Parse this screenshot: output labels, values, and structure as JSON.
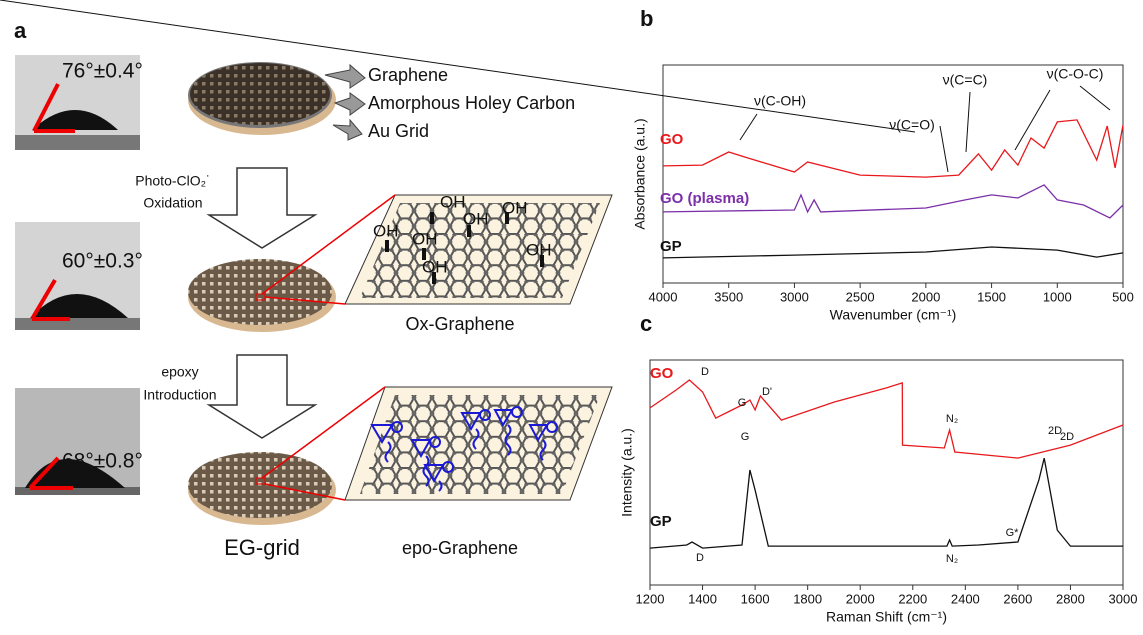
{
  "panel_a": {
    "label": "a",
    "angles": [
      "76°±0.4°",
      "60°±0.3°",
      "68°±0.8°"
    ],
    "layers": [
      "Graphene",
      "Amorphous Holey Carbon",
      "Au Grid"
    ],
    "step1": [
      "Photo-ClO₂˙",
      "Oxidation"
    ],
    "oh": [
      "OH",
      "OH",
      "OH",
      "OH",
      "OH",
      "OH",
      "OH"
    ],
    "ox_label": "Ox-Graphene",
    "step2": [
      "epoxy",
      "Introduction"
    ],
    "grid_label": "EG-grid",
    "epo_label": "epo-Graphene"
  },
  "chart_data": [
    {
      "type": "line",
      "panel_label": "b",
      "xlabel": "Wavenumber (cm⁻¹)",
      "ylabel": "Absorbance (a.u.)",
      "xlim": [
        4000,
        500
      ],
      "ylim": [
        0,
        100
      ],
      "xticks": [
        4000,
        3500,
        3000,
        2500,
        2000,
        1500,
        1000,
        500
      ],
      "series": [
        {
          "name": "GO",
          "color": "#e8191c",
          "x": [
            4000,
            3700,
            3500,
            3350,
            3000,
            2900,
            2500,
            2000,
            1750,
            1600,
            1500,
            1400,
            1300,
            1200,
            1100,
            1000,
            850,
            700,
            620,
            560,
            500
          ],
          "values": [
            53.7,
            54.1,
            60.1,
            57.3,
            50.9,
            55.5,
            49.5,
            48.6,
            49.5,
            59.2,
            51.8,
            61.0,
            54.1,
            66.5,
            61.9,
            73.9,
            74.8,
            56.4,
            72.0,
            52.8,
            72.5
          ]
        },
        {
          "name": "GO (plasma)",
          "color": "#7b2fa8",
          "x": [
            4000,
            3000,
            2950,
            2900,
            2850,
            2800,
            2000,
            1700,
            1500,
            1300,
            1100,
            1000,
            800,
            600,
            500
          ],
          "values": [
            32.6,
            33.5,
            40.4,
            32.6,
            38.1,
            32.6,
            34.4,
            38.1,
            40.4,
            39.0,
            45.0,
            38.1,
            35.8,
            29.8,
            35.8
          ]
        },
        {
          "name": "GP",
          "color": "#111111",
          "x": [
            4000,
            3000,
            2000,
            1500,
            1000,
            700,
            500
          ],
          "values": [
            11.5,
            12.8,
            14.2,
            16.5,
            15.1,
            11.9,
            13.8
          ]
        }
      ],
      "annotations": [
        "ν(C-OH)",
        "ν(C=C)",
        "ν(C=O)",
        "ν(C-O-C)"
      ]
    },
    {
      "type": "line",
      "panel_label": "c",
      "xlabel": "Raman Shift (cm⁻¹)",
      "ylabel": "Intensity (a.u.)",
      "xlim": [
        1200,
        3000
      ],
      "ylim": [
        0,
        100
      ],
      "xticks": [
        1200,
        1400,
        1600,
        1800,
        2000,
        2200,
        2400,
        2600,
        2800,
        3000
      ],
      "series": [
        {
          "name": "GO",
          "color": "#e8191c",
          "x": [
            1200,
            1300,
            1350,
            1400,
            1450,
            1550,
            1580,
            1600,
            1620,
            1700,
            1900,
            2100,
            2160,
            2161,
            2320,
            2340,
            2360,
            2600,
            2800,
            3000
          ],
          "values": [
            78.7,
            86.7,
            91.1,
            85.8,
            74.2,
            80,
            82.2,
            77.8,
            84,
            73.3,
            81.3,
            87.6,
            89.8,
            62.2,
            60.9,
            68.9,
            59.1,
            56.4,
            62.2,
            71.1
          ]
        },
        {
          "name": "GP",
          "color": "#111111",
          "x": [
            1200,
            1340,
            1360,
            1400,
            1550,
            1580,
            1600,
            1650,
            2330,
            2340,
            2350,
            2450,
            2600,
            2680,
            2700,
            2750,
            2800,
            3000
          ],
          "values": [
            16.4,
            17.8,
            19.1,
            16.4,
            17.8,
            51.1,
            42.2,
            17.3,
            17.3,
            20,
            17.3,
            17.8,
            19.1,
            46.7,
            56.4,
            24.4,
            17.3,
            17.3
          ]
        }
      ],
      "annotations": [
        "D",
        "G",
        "D'",
        "N₂",
        "2D",
        "D",
        "G",
        "N₂",
        "G*",
        "2D"
      ]
    }
  ]
}
